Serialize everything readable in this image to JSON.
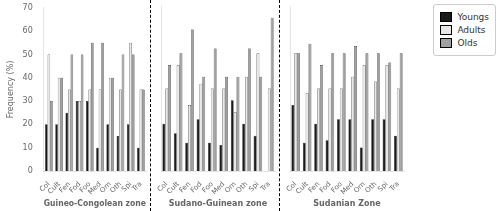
{
  "chart_data": [
    {
      "type": "bar",
      "xlabel": "Guineo-Congolean zone",
      "ylabel": "Frequency (%)",
      "categories": [
        "Col",
        "Cult",
        "Fen",
        "Fod",
        "Foo",
        "Med",
        "Orn",
        "Oth",
        "Spi",
        "Tra"
      ],
      "series": [
        {
          "name": "Youngs",
          "color": "#1a1a1a",
          "values": [
            20,
            20,
            25,
            30,
            30,
            10,
            20,
            15,
            20,
            10
          ]
        },
        {
          "name": "Adults",
          "color": "#e8e8e8",
          "values": [
            50,
            40,
            35,
            30,
            35,
            35,
            40,
            35,
            55,
            35
          ]
        },
        {
          "name": "Olds",
          "color": "#a0a0a0",
          "values": [
            30,
            40,
            50,
            50,
            55,
            55,
            40,
            50,
            50,
            35
          ]
        }
      ],
      "ylim": [
        0,
        70
      ],
      "yticks": [
        0,
        10,
        20,
        30,
        40,
        50,
        60,
        70
      ],
      "grid": false
    },
    {
      "type": "bar",
      "xlabel": "Sudano-Guinean zone",
      "categories": [
        "Col",
        "Cult",
        "Fen",
        "Fod",
        "Foo",
        "Med",
        "Orn",
        "Oth",
        "Spi",
        "Tra"
      ],
      "series": [
        {
          "name": "Youngs",
          "color": "#1a1a1a",
          "values": [
            20,
            16,
            12,
            22,
            12,
            11,
            30,
            20,
            15,
            0
          ]
        },
        {
          "name": "Adults",
          "color": "#e8e8e8",
          "values": [
            35,
            45,
            28,
            37,
            35,
            35,
            25,
            40,
            50,
            35
          ]
        },
        {
          "name": "Olds",
          "color": "#a0a0a0",
          "values": [
            45,
            50,
            60,
            40,
            52,
            40,
            40,
            52,
            40,
            65
          ]
        }
      ],
      "ylim": [
        0,
        70
      ],
      "yticks": [
        0,
        10,
        20,
        30,
        40,
        50,
        60,
        70
      ],
      "grid": false,
      "tick_labels": "x"
    },
    {
      "type": "bar",
      "xlabel": "Sudanian Zone",
      "categories": [
        "Col",
        "Cult",
        "Fen",
        "Fod",
        "Foo",
        "Med",
        "Orn",
        "Oth",
        "Spi",
        "Tra"
      ],
      "series": [
        {
          "name": "Youngs",
          "color": "#1a1a1a",
          "values": [
            28,
            12,
            20,
            13,
            22,
            22,
            10,
            22,
            22,
            15
          ]
        },
        {
          "name": "Adults",
          "color": "#e8e8e8",
          "values": [
            50,
            33,
            35,
            35,
            35,
            40,
            45,
            38,
            45,
            35
          ]
        },
        {
          "name": "Olds",
          "color": "#a0a0a0",
          "values": [
            50,
            54,
            45,
            50,
            50,
            53,
            50,
            50,
            46,
            50
          ]
        }
      ],
      "ylim": [
        0,
        70
      ],
      "yticks": [
        0,
        10,
        20,
        30,
        40,
        50,
        60,
        70
      ],
      "grid": false,
      "tick_labels": "x",
      "legend": "upper right"
    }
  ]
}
